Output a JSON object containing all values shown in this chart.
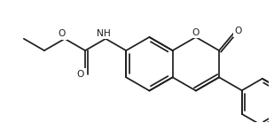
{
  "bg": "#ffffff",
  "lc": "#1f1f1f",
  "lw": 1.25,
  "fs": 7.2,
  "r": 0.5,
  "bx": 3.28,
  "by": 1.28,
  "xlim": [
    0.6,
    5.5
  ],
  "ylim": [
    0.2,
    2.45
  ],
  "dpi": 100
}
